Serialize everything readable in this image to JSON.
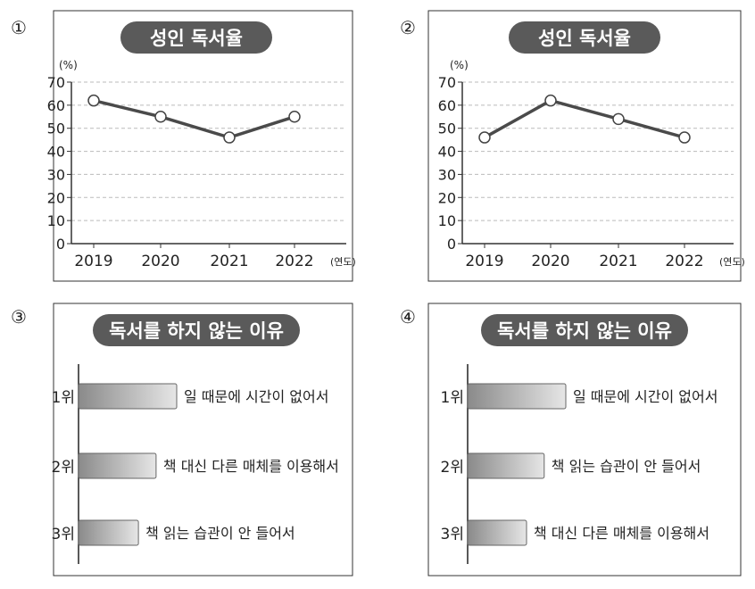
{
  "options": [
    "①",
    "②",
    "③",
    "④"
  ],
  "chart_data": [
    {
      "type": "line",
      "title": "성인 독서율",
      "ylabel": "(%)",
      "xlabel": "(연도)",
      "categories": [
        "2019",
        "2020",
        "2021",
        "2022"
      ],
      "values": [
        62,
        55,
        46,
        55
      ],
      "yticks": [
        "0",
        "10",
        "20",
        "30",
        "40",
        "50",
        "60",
        "70"
      ],
      "ylim": [
        0,
        70
      ],
      "grid": true
    },
    {
      "type": "line",
      "title": "성인 독서율",
      "ylabel": "(%)",
      "xlabel": "(연도)",
      "categories": [
        "2019",
        "2020",
        "2021",
        "2022"
      ],
      "values": [
        46,
        62,
        54,
        46
      ],
      "yticks": [
        "0",
        "10",
        "20",
        "30",
        "40",
        "50",
        "60",
        "70"
      ],
      "ylim": [
        0,
        70
      ],
      "grid": true
    },
    {
      "type": "bar",
      "orientation": "horizontal",
      "title": "독서를 하지 않는 이유",
      "categories": [
        "1위",
        "2위",
        "3위"
      ],
      "labels": [
        "일 때문에 시간이 없어서",
        "책 대신 다른 매체를 이용해서",
        "책 읽는 습관이 안 들어서"
      ],
      "values": [
        1.0,
        0.79,
        0.61
      ]
    },
    {
      "type": "bar",
      "orientation": "horizontal",
      "title": "독서를 하지 않는 이유",
      "categories": [
        "1위",
        "2위",
        "3위"
      ],
      "labels": [
        "일 때문에 시간이 없어서",
        "책 읽는 습관이 안 들어서",
        "책 대신 다른 매체를 이용해서"
      ],
      "values": [
        1.0,
        0.78,
        0.6
      ]
    }
  ],
  "colors": {
    "title_pill": "#5a5a5a",
    "line": "#4a4a4a",
    "grid": "#bbbbbb",
    "bar_dark": "#8a8a8a",
    "bar_light": "#e6e6e6"
  }
}
